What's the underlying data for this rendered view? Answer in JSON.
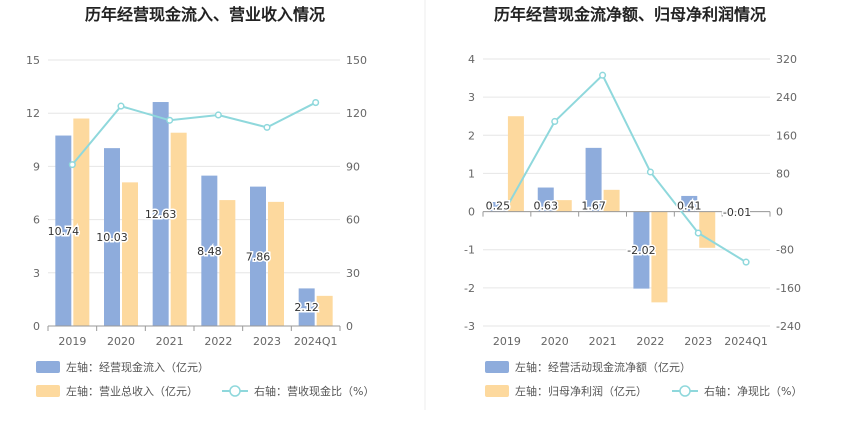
{
  "colors": {
    "blue": "#8eacdc",
    "orange": "#fdd99e",
    "line": "#8fd8dc",
    "grid": "#e6e6e6",
    "axis": "#999999"
  },
  "chart_data": [
    {
      "type": "bar",
      "title": "历年经营现金流入、营业收入情况",
      "categories": [
        "2019",
        "2020",
        "2021",
        "2022",
        "2023",
        "2024Q1"
      ],
      "left_ticks": [
        "0",
        "3",
        "6",
        "9",
        "12",
        "15"
      ],
      "right_ticks": [
        "0",
        "30",
        "60",
        "90",
        "120",
        "150"
      ],
      "ylim_left": [
        0,
        15
      ],
      "ylim_right": [
        0,
        150
      ],
      "series": [
        {
          "name": "左轴：经营现金流入（亿元）",
          "axis": "left",
          "kind": "bar",
          "color": "#8eacdc",
          "values": [
            10.74,
            10.03,
            12.63,
            8.48,
            7.86,
            2.12
          ],
          "labels": [
            "10.74",
            "10.03",
            "12.63",
            "8.48",
            "7.86",
            "2.12"
          ]
        },
        {
          "name": "左轴：营业总收入（亿元）",
          "axis": "left",
          "kind": "bar",
          "color": "#fdd99e",
          "values": [
            11.7,
            8.1,
            10.9,
            7.1,
            7.0,
            1.7
          ]
        },
        {
          "name": "右轴：营收现金比（%）",
          "axis": "right",
          "kind": "line",
          "color": "#8fd8dc",
          "values": [
            91,
            124,
            116,
            119,
            112,
            126
          ]
        }
      ],
      "legend": "bottom-left"
    },
    {
      "type": "bar",
      "title": "历年经营现金流净额、归母净利润情况",
      "categories": [
        "2019",
        "2020",
        "2021",
        "2022",
        "2023",
        "2024Q1"
      ],
      "left_ticks": [
        "-3",
        "-2",
        "-1",
        "0",
        "1",
        "2",
        "3",
        "4"
      ],
      "right_ticks": [
        "-240",
        "-160",
        "-80",
        "0",
        "80",
        "160",
        "240",
        "320"
      ],
      "ylim_left": [
        -3,
        4
      ],
      "ylim_right": [
        -240,
        320
      ],
      "series": [
        {
          "name": "左轴：经营活动现金流净额（亿元）",
          "axis": "left",
          "kind": "bar",
          "color": "#8eacdc",
          "values": [
            0.25,
            0.63,
            1.67,
            -2.02,
            0.41,
            -0.01
          ],
          "labels": [
            "0.25",
            "0.63",
            "1.67",
            "-2.02",
            "0.41",
            "-0.01"
          ]
        },
        {
          "name": "左轴：归母净利润（亿元）",
          "axis": "left",
          "kind": "bar",
          "color": "#fdd99e",
          "values": [
            2.5,
            0.3,
            0.57,
            -2.38,
            -0.95,
            0
          ]
        },
        {
          "name": "右轴：净现比（%）",
          "axis": "right",
          "kind": "line",
          "color": "#8fd8dc",
          "values": [
            10,
            189,
            286,
            83,
            -45,
            -106
          ]
        }
      ],
      "legend": "bottom-left"
    }
  ]
}
